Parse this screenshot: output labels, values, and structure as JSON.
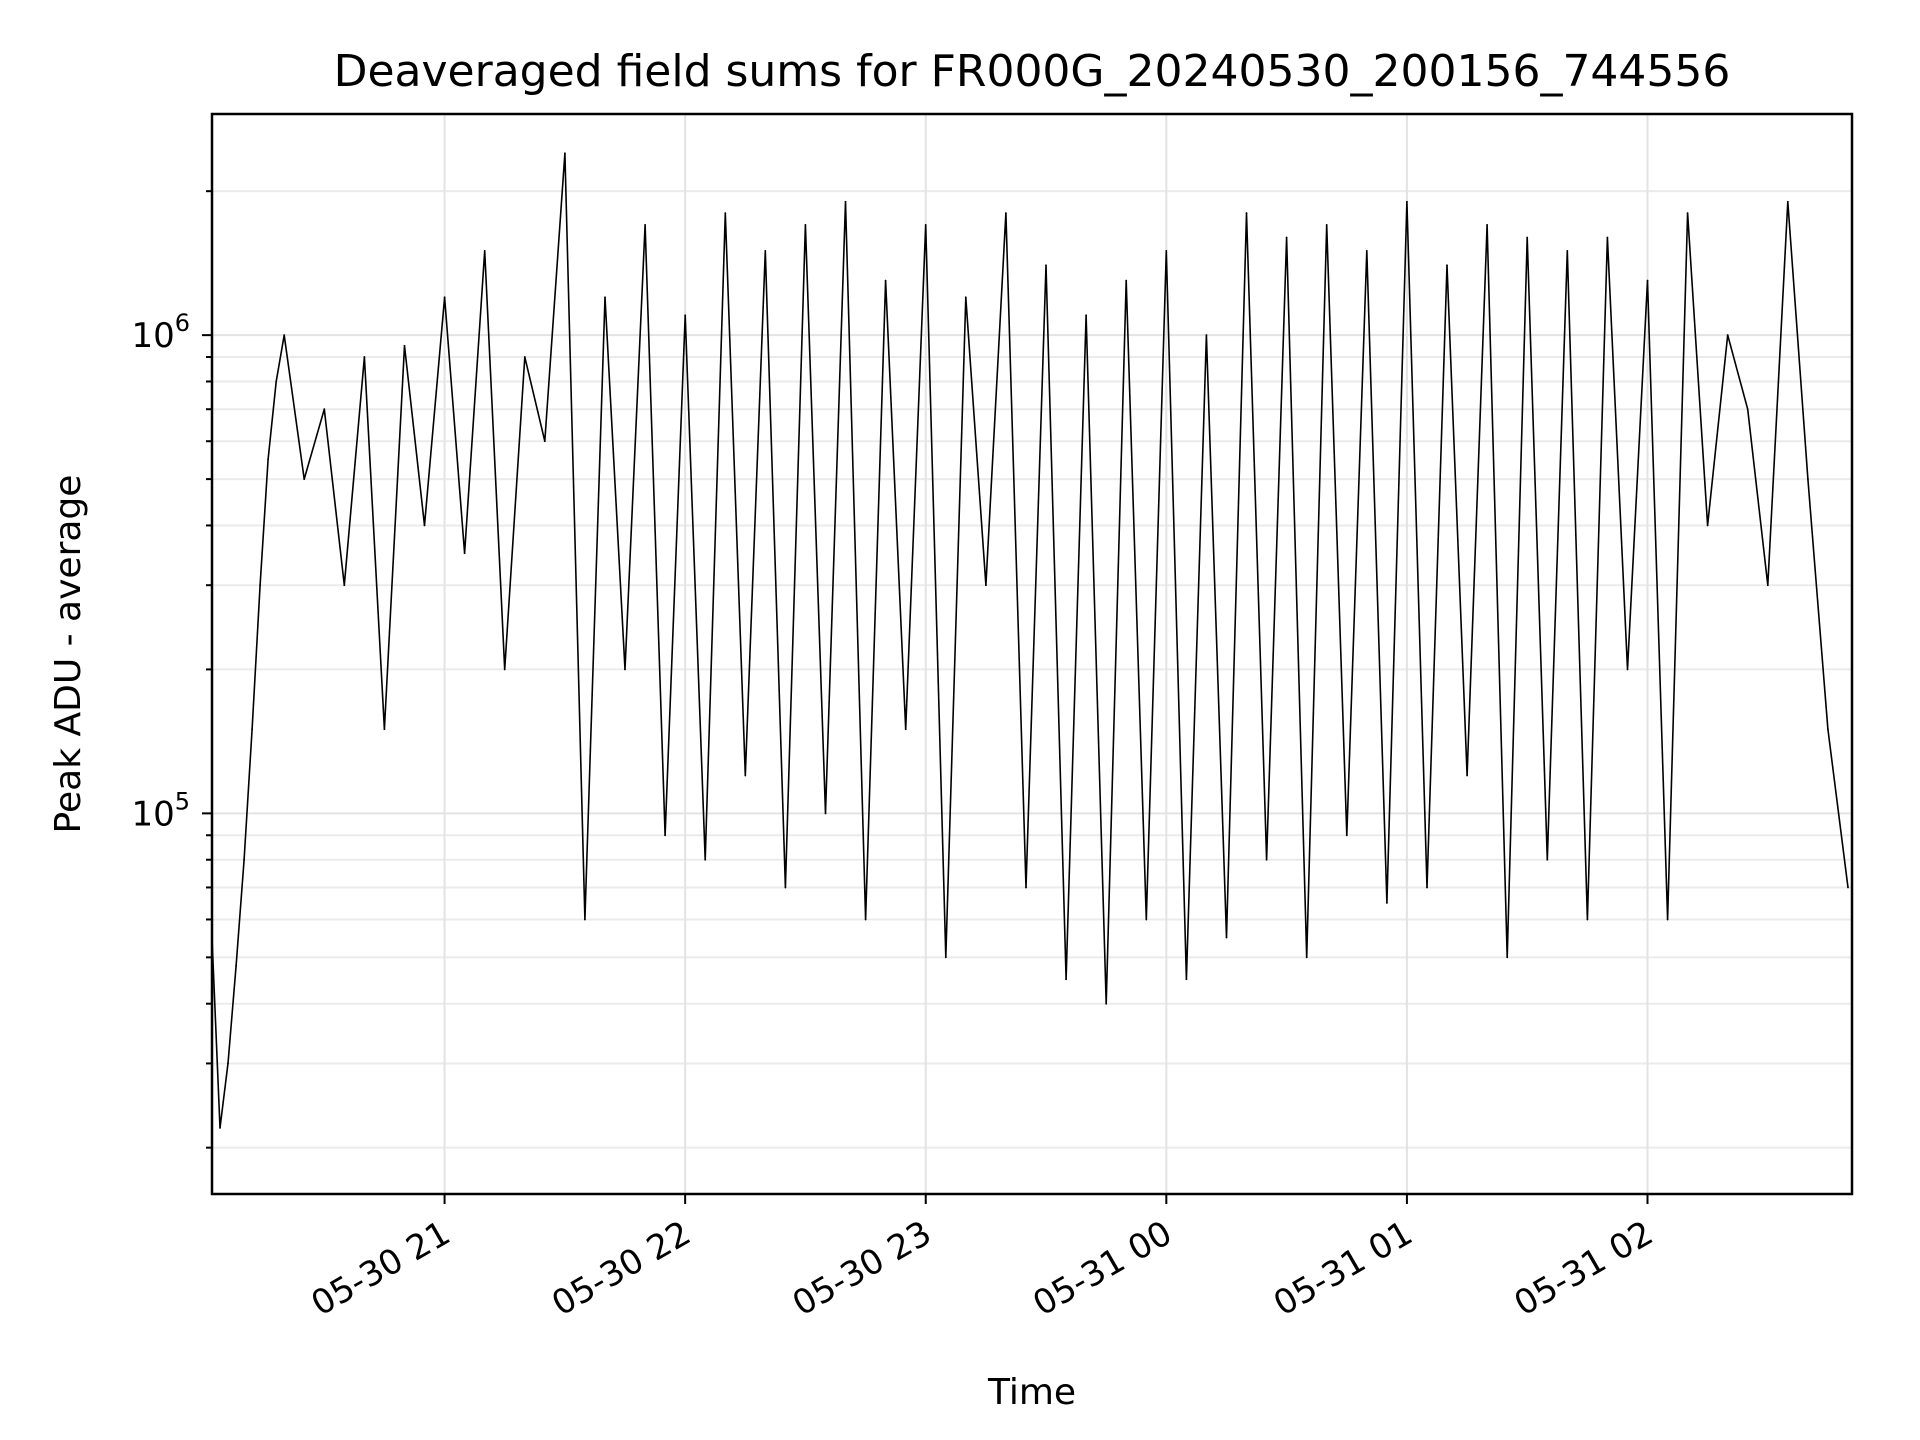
{
  "chart_data": {
    "type": "line",
    "title": "Deaveraged field sums for FR000G_20240530_200156_744556",
    "xlabel": "Time",
    "ylabel": "Peak ADU - average",
    "xscale": "time",
    "yscale": "log",
    "xlim": [
      "2024-05-30 20:02",
      "2024-05-31 02:51"
    ],
    "ylim": [
      16000,
      2900000
    ],
    "grid": true,
    "line_color": "#000000",
    "x_ticks": [
      {
        "value": "2024-05-30 21:00",
        "label": "05-30 21"
      },
      {
        "value": "2024-05-30 22:00",
        "label": "05-30 22"
      },
      {
        "value": "2024-05-30 23:00",
        "label": "05-30 23"
      },
      {
        "value": "2024-05-31 00:00",
        "label": "05-31 00"
      },
      {
        "value": "2024-05-31 01:00",
        "label": "05-31 01"
      },
      {
        "value": "2024-05-31 02:00",
        "label": "05-31 02"
      }
    ],
    "y_ticks": [
      {
        "value": 100000,
        "base": "10",
        "exp": "5"
      },
      {
        "value": 1000000,
        "base": "10",
        "exp": "6"
      }
    ],
    "series": [
      {
        "x": [
          "2024-05-30 20:02",
          "2024-05-30 20:04",
          "2024-05-30 20:06",
          "2024-05-30 20:08",
          "2024-05-30 20:10",
          "2024-05-30 20:12",
          "2024-05-30 20:14",
          "2024-05-30 20:16",
          "2024-05-30 20:18",
          "2024-05-30 20:20",
          "2024-05-30 20:25",
          "2024-05-30 20:30",
          "2024-05-30 20:35",
          "2024-05-30 20:40",
          "2024-05-30 20:45",
          "2024-05-30 20:50",
          "2024-05-30 20:55",
          "2024-05-30 21:00",
          "2024-05-30 21:05",
          "2024-05-30 21:10",
          "2024-05-30 21:15",
          "2024-05-30 21:20",
          "2024-05-30 21:25",
          "2024-05-30 21:30",
          "2024-05-30 21:35",
          "2024-05-30 21:40",
          "2024-05-30 21:45",
          "2024-05-30 21:50",
          "2024-05-30 21:55",
          "2024-05-30 22:00",
          "2024-05-30 22:05",
          "2024-05-30 22:10",
          "2024-05-30 22:15",
          "2024-05-30 22:20",
          "2024-05-30 22:25",
          "2024-05-30 22:30",
          "2024-05-30 22:35",
          "2024-05-30 22:40",
          "2024-05-30 22:45",
          "2024-05-30 22:50",
          "2024-05-30 22:55",
          "2024-05-30 23:00",
          "2024-05-30 23:05",
          "2024-05-30 23:10",
          "2024-05-30 23:15",
          "2024-05-30 23:20",
          "2024-05-30 23:25",
          "2024-05-30 23:30",
          "2024-05-30 23:35",
          "2024-05-30 23:40",
          "2024-05-30 23:45",
          "2024-05-30 23:50",
          "2024-05-30 23:55",
          "2024-05-31 00:00",
          "2024-05-31 00:05",
          "2024-05-31 00:10",
          "2024-05-31 00:15",
          "2024-05-31 00:20",
          "2024-05-31 00:25",
          "2024-05-31 00:30",
          "2024-05-31 00:35",
          "2024-05-31 00:40",
          "2024-05-31 00:45",
          "2024-05-31 00:50",
          "2024-05-31 00:55",
          "2024-05-31 01:00",
          "2024-05-31 01:05",
          "2024-05-31 01:10",
          "2024-05-31 01:15",
          "2024-05-31 01:20",
          "2024-05-31 01:25",
          "2024-05-31 01:30",
          "2024-05-31 01:35",
          "2024-05-31 01:40",
          "2024-05-31 01:45",
          "2024-05-31 01:50",
          "2024-05-31 01:55",
          "2024-05-31 02:00",
          "2024-05-31 02:05",
          "2024-05-31 02:10",
          "2024-05-31 02:15",
          "2024-05-31 02:20",
          "2024-05-31 02:25",
          "2024-05-31 02:30",
          "2024-05-31 02:35",
          "2024-05-31 02:40",
          "2024-05-31 02:45",
          "2024-05-31 02:50"
        ],
        "y": [
          55000,
          22000,
          30000,
          48000,
          80000,
          150000,
          300000,
          550000,
          800000,
          1000000,
          500000,
          700000,
          300000,
          900000,
          150000,
          950000,
          400000,
          1200000,
          350000,
          1500000,
          200000,
          900000,
          600000,
          2400000,
          60000,
          1200000,
          200000,
          1700000,
          90000,
          1100000,
          80000,
          1800000,
          120000,
          1500000,
          70000,
          1700000,
          100000,
          1900000,
          60000,
          1300000,
          150000,
          1700000,
          50000,
          1200000,
          300000,
          1800000,
          70000,
          1400000,
          45000,
          1100000,
          40000,
          1300000,
          60000,
          1500000,
          45000,
          1000000,
          55000,
          1800000,
          80000,
          1600000,
          50000,
          1700000,
          90000,
          1500000,
          65000,
          1900000,
          70000,
          1400000,
          120000,
          1700000,
          50000,
          1600000,
          80000,
          1500000,
          60000,
          1600000,
          200000,
          1300000,
          60000,
          1800000,
          400000,
          1000000,
          700000,
          300000,
          1900000,
          500000,
          150000,
          70000
        ]
      }
    ]
  }
}
